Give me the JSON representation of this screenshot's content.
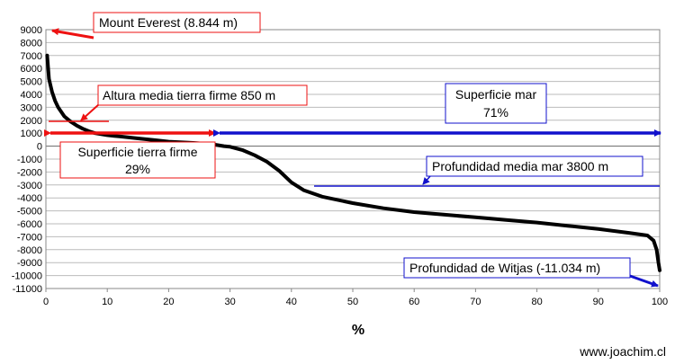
{
  "chart_data": {
    "type": "line",
    "xlabel": "%",
    "ylabel": "",
    "xlim": [
      0,
      100
    ],
    "ylim": [
      -11000,
      9000
    ],
    "x_ticks": [
      0,
      10,
      20,
      30,
      40,
      50,
      60,
      70,
      80,
      90,
      100
    ],
    "y_ticks": [
      9000,
      8000,
      7000,
      6000,
      5000,
      4000,
      3000,
      2000,
      1000,
      0,
      -1000,
      -2000,
      -3000,
      -4000,
      -5000,
      -6000,
      -7000,
      -8000,
      -9000,
      -10000,
      -11000
    ],
    "y_tick_labels": [
      "9000",
      "8000",
      "7000",
      "6000",
      "5000",
      "4000",
      "3000",
      "2000",
      "1000",
      "0",
      "-1000",
      "-2000",
      "-3000",
      "-4000",
      "-5000",
      "-6000",
      "-7000",
      "-8000",
      "-9000",
      "-10000",
      "-11000"
    ],
    "grid": "horizontal",
    "line_color": "#000000",
    "series": [
      {
        "x": [
          0.2,
          0.5,
          1,
          1.5,
          2,
          3,
          4,
          5,
          6,
          7,
          8,
          10,
          12,
          15,
          18,
          20,
          24,
          27,
          29,
          30,
          32,
          34,
          36,
          38,
          40,
          42,
          45,
          50,
          55,
          60,
          65,
          70,
          75,
          80,
          85,
          90,
          95,
          98,
          99,
          99.5,
          99.8,
          100
        ],
        "y": [
          7000,
          5200,
          4200,
          3500,
          3000,
          2300,
          1900,
          1600,
          1350,
          1150,
          1000,
          850,
          750,
          600,
          450,
          350,
          250,
          150,
          0,
          -50,
          -300,
          -700,
          -1200,
          -1900,
          -2800,
          -3400,
          -3900,
          -4400,
          -4800,
          -5100,
          -5300,
          -5500,
          -5700,
          -5900,
          -6150,
          -6400,
          -6700,
          -6900,
          -7300,
          -8000,
          -9000,
          -9600
        ]
      }
    ],
    "annotations": {
      "everest": "Mount Everest (8.844 m)",
      "land_mean": "Altura media tierra firme 850 m",
      "sea_surface_line1": "Superficie mar",
      "sea_surface_line2": "71%",
      "land_surface_line1": "Superficie tierra firme",
      "land_surface_line2": "29%",
      "sea_mean": "Profundidad media mar 3800 m",
      "witjas": "Profundidad de Witjas (-11.034 m)"
    },
    "colors": {
      "red": "#ee1111",
      "blue": "#1111cc",
      "grid": "#bbbbbb"
    }
  },
  "credit": "www.joachim.cl"
}
